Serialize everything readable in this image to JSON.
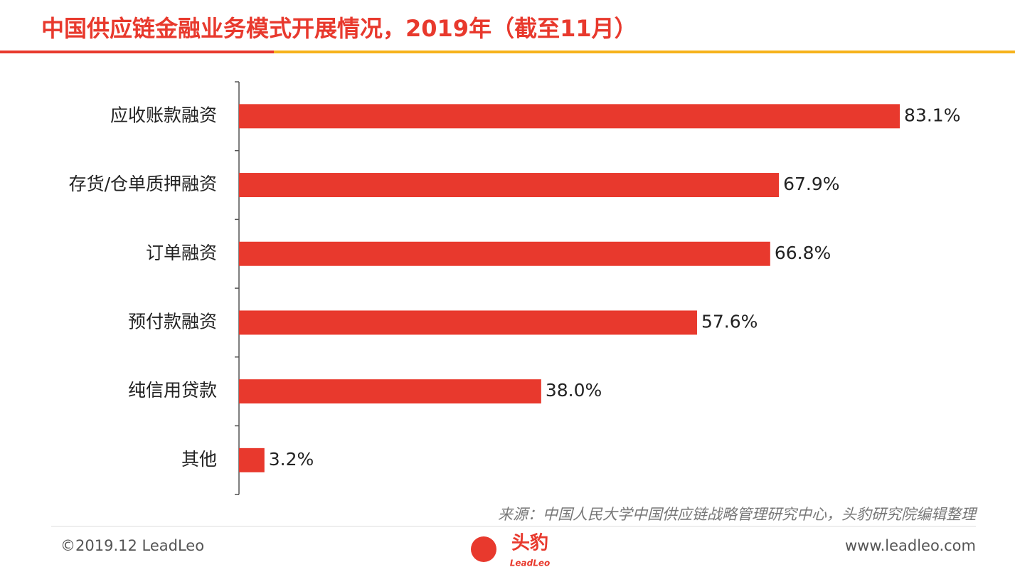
{
  "chart_data": {
    "type": "bar",
    "orientation": "horizontal",
    "title": "中国供应链金融业务模式开展情况，2019年（截至11月）",
    "categories": [
      "应收账款融资",
      "存货/仓单质押融资",
      "订单融资",
      "预付款融资",
      "纯信用贷款",
      "其他"
    ],
    "values": [
      83.1,
      67.9,
      66.8,
      57.6,
      38.0,
      3.2
    ],
    "value_labels": [
      "83.1%",
      "67.9%",
      "66.8%",
      "57.6%",
      "38.0%",
      "3.2%"
    ],
    "color": "#e8392d",
    "source": "来源：中国人民大学中国供应链战略管理研究中心，头豹研究院编辑整理"
  },
  "footer": {
    "copyright": "©2019.12 LeadLeo",
    "website": "www.leadleo.com",
    "logo": {
      "name": "头豹",
      "subtitle": "LeadLeo"
    }
  }
}
